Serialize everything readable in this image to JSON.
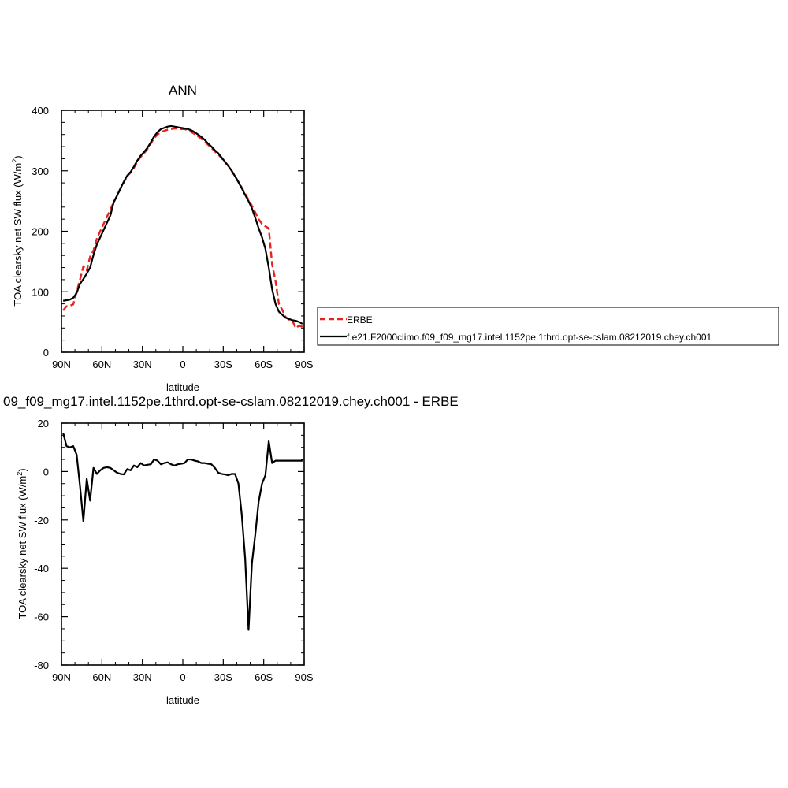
{
  "chart_data": [
    {
      "type": "line",
      "title": "ANN",
      "xlabel": "latitude",
      "ylabel": "TOA clearsky net SW flux (W/m",
      "ylabel_sup": "2",
      "ylabel_end": ")",
      "xlim": [
        90,
        -90
      ],
      "ylim": [
        0,
        400
      ],
      "x_ticks": [
        90,
        60,
        30,
        0,
        -30,
        -60,
        -90
      ],
      "x_tick_labels": [
        "90N",
        "60N",
        "30N",
        "0",
        "30S",
        "60S",
        "90S"
      ],
      "y_ticks": [
        0,
        100,
        200,
        300,
        400
      ],
      "y_tick_labels": [
        "0",
        "100",
        "200",
        "300",
        "400"
      ],
      "legend_position": "right",
      "series": [
        {
          "name": "ERBE",
          "color": "#e8231f",
          "dash": "dashed",
          "x": [
            88.75,
            86.25,
            83.75,
            81.25,
            78.75,
            76.25,
            73.75,
            71.25,
            68.75,
            66.25,
            63.75,
            61.25,
            58.75,
            56.25,
            53.75,
            51.25,
            48.75,
            46.25,
            43.75,
            41.25,
            38.75,
            36.25,
            33.75,
            31.25,
            28.75,
            26.25,
            23.75,
            21.25,
            18.75,
            16.25,
            13.75,
            11.25,
            8.75,
            6.25,
            3.75,
            1.25,
            -1.25,
            -3.75,
            -6.25,
            -8.75,
            -11.25,
            -13.75,
            -16.25,
            -18.75,
            -21.25,
            -23.75,
            -26.25,
            -28.75,
            -31.25,
            -33.75,
            -36.25,
            -38.75,
            -41.25,
            -43.75,
            -46.25,
            -48.75,
            -51.25,
            -53.75,
            -56.25,
            -58.75,
            -61.25,
            -63.75,
            -66.25,
            -68.75,
            -71.25,
            -73.75,
            -76.25,
            -78.75,
            -81.25,
            -83.75,
            -86.25,
            -88.75
          ],
          "y": [
            69,
            76,
            77,
            79,
            100,
            120,
            142,
            135,
            158,
            168,
            188,
            200,
            212,
            224,
            236,
            248,
            259,
            270,
            281,
            291,
            297,
            305,
            315,
            323,
            329,
            336,
            345,
            354,
            360,
            364,
            366,
            368,
            369,
            370,
            370,
            369,
            369,
            367,
            364,
            361,
            357,
            353,
            348,
            343,
            338,
            332,
            327,
            321,
            314,
            308,
            300,
            291,
            282,
            272,
            262,
            252,
            242,
            231,
            220,
            212,
            208,
            205,
            145,
            118,
            80,
            70,
            58,
            54,
            52,
            40,
            44,
            42
          ]
        },
        {
          "name": "f.e21.F2000climo.f09_f09_mg17.intel.1152pe.1thrd.opt-se-cslam.08212019.chey.ch001",
          "color": "#000000",
          "dash": "solid",
          "x": [
            88.75,
            86.25,
            83.75,
            81.25,
            78.75,
            76.25,
            73.75,
            71.25,
            68.75,
            66.25,
            63.75,
            61.25,
            58.75,
            56.25,
            53.75,
            51.25,
            48.75,
            46.25,
            43.75,
            41.25,
            38.75,
            36.25,
            33.75,
            31.25,
            28.75,
            26.25,
            23.75,
            21.25,
            18.75,
            16.25,
            13.75,
            11.25,
            8.75,
            6.25,
            3.75,
            1.25,
            -1.25,
            -3.75,
            -6.25,
            -8.75,
            -11.25,
            -13.75,
            -16.25,
            -18.75,
            -21.25,
            -23.75,
            -26.25,
            -28.75,
            -31.25,
            -33.75,
            -36.25,
            -38.75,
            -41.25,
            -43.75,
            -46.25,
            -48.75,
            -51.25,
            -53.75,
            -56.25,
            -58.75,
            -61.25,
            -63.75,
            -66.25,
            -68.75,
            -71.25,
            -73.75,
            -76.25,
            -78.75,
            -81.25,
            -83.75,
            -86.25,
            -88.75
          ],
          "y": [
            85,
            86,
            87,
            90,
            98,
            113,
            121,
            130,
            140,
            161,
            178,
            190,
            202,
            214,
            226,
            248,
            259,
            271,
            282,
            292,
            298,
            307,
            317,
            325,
            331,
            338,
            347,
            357,
            364,
            369,
            371,
            373,
            374,
            373,
            372,
            371,
            370,
            369,
            367,
            364,
            360,
            356,
            351,
            345,
            340,
            334,
            329,
            322,
            315,
            308,
            300,
            291,
            281,
            271,
            260,
            250,
            238,
            222,
            205,
            190,
            171,
            140,
            104,
            80,
            67,
            62,
            57,
            55,
            53,
            52,
            50,
            47
          ]
        }
      ]
    },
    {
      "type": "line",
      "title": "09_f09_mg17.intel.1152pe.1thrd.opt-se-cslam.08212019.chey.ch001 - ERBE",
      "xlabel": "latitude",
      "ylabel": "TOA clearsky net SW flux (W/m",
      "ylabel_sup": "2",
      "ylabel_end": ")",
      "xlim": [
        90,
        -90
      ],
      "ylim": [
        -80,
        20
      ],
      "x_ticks": [
        90,
        60,
        30,
        0,
        -30,
        -60,
        -90
      ],
      "x_tick_labels": [
        "90N",
        "60N",
        "30N",
        "0",
        "30S",
        "60S",
        "90S"
      ],
      "y_ticks": [
        -80,
        -60,
        -40,
        -20,
        0,
        20
      ],
      "y_tick_labels": [
        "-80",
        "-60",
        "-40",
        "-20",
        "0",
        "20"
      ],
      "series": [
        {
          "color": "#000000",
          "dash": "solid",
          "x": [
            88.75,
            86.25,
            83.75,
            81.25,
            78.75,
            76.25,
            73.75,
            71.25,
            68.75,
            66.25,
            63.75,
            61.25,
            58.75,
            56.25,
            53.75,
            51.25,
            48.75,
            46.25,
            43.75,
            41.25,
            38.75,
            36.25,
            33.75,
            31.25,
            28.75,
            26.25,
            23.75,
            21.25,
            18.75,
            16.25,
            13.75,
            11.25,
            8.75,
            6.25,
            3.75,
            1.25,
            -1.25,
            -3.75,
            -6.25,
            -8.75,
            -11.25,
            -13.75,
            -16.25,
            -18.75,
            -21.25,
            -23.75,
            -26.25,
            -28.75,
            -31.25,
            -33.75,
            -36.25,
            -38.75,
            -41.25,
            -43.75,
            -46.25,
            -48.75,
            -51.25,
            -53.75,
            -56.25,
            -58.75,
            -61.25,
            -63.75,
            -66.25,
            -68.75,
            -71.25,
            -73.75,
            -76.25,
            -78.75,
            -81.25,
            -83.75,
            -86.25,
            -88.75
          ],
          "y": [
            16,
            10.5,
            10,
            10.5,
            7,
            -6,
            -20.5,
            -3,
            -12,
            1.5,
            -1,
            0.5,
            1.5,
            1.8,
            1.5,
            0.5,
            -0.5,
            -1,
            -1.2,
            1,
            0.5,
            2.5,
            1.8,
            3.5,
            2.5,
            2.8,
            3,
            5,
            4.5,
            3,
            3.5,
            3.8,
            3,
            2.5,
            3,
            3.2,
            3.5,
            5,
            5,
            4.5,
            4.2,
            3.5,
            3.5,
            3.2,
            3,
            1.5,
            -0.5,
            -1,
            -1.2,
            -1.5,
            -1,
            -1,
            -5,
            -18,
            -36,
            -65.5,
            -38,
            -26,
            -12.5,
            -5,
            -1.5,
            12.5,
            3.5,
            4.5,
            4.5,
            4.5,
            4.5,
            4.5,
            4.5,
            4.5,
            4.5,
            4.5
          ]
        }
      ]
    }
  ]
}
